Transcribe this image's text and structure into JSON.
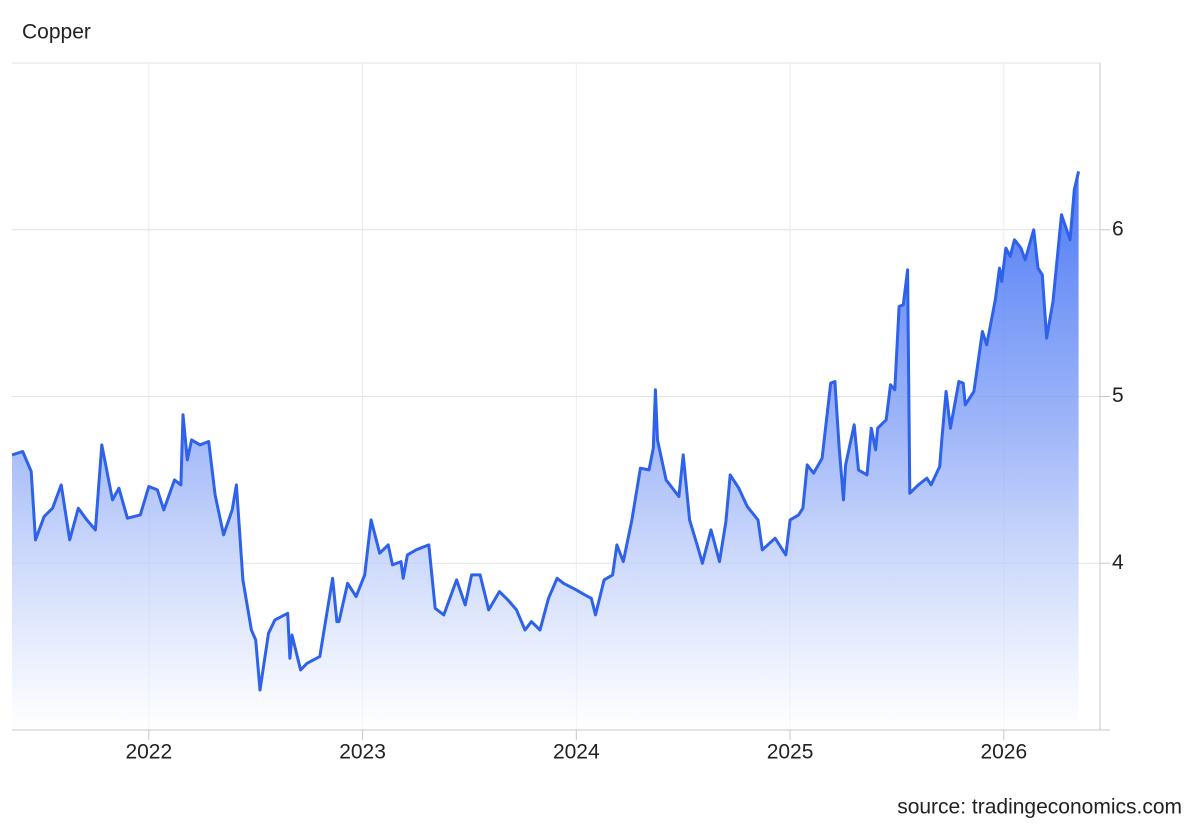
{
  "chart_data": {
    "type": "area",
    "title": "Copper",
    "source": "source: tradingeconomics.com",
    "color": "#2f62ea",
    "grid": true,
    "xlim": [
      2021.36,
      2026.45
    ],
    "xticks": [
      2022,
      2023,
      2024,
      2025,
      2026
    ],
    "ylim": [
      3,
      7
    ],
    "yticks": [
      4,
      5,
      6
    ],
    "x": [
      2021.36,
      2021.41,
      2021.45,
      2021.47,
      2021.51,
      2021.55,
      2021.59,
      2021.63,
      2021.67,
      2021.71,
      2021.75,
      2021.78,
      2021.83,
      2021.86,
      2021.9,
      2021.96,
      2022.0,
      2022.04,
      2022.07,
      2022.12,
      2022.15,
      2022.16,
      2022.18,
      2022.2,
      2022.24,
      2022.28,
      2022.31,
      2022.35,
      2022.39,
      2022.41,
      2022.44,
      2022.48,
      2022.5,
      2022.52,
      2022.56,
      2022.59,
      2022.65,
      2022.66,
      2022.67,
      2022.71,
      2022.74,
      2022.8,
      2022.82,
      2022.86,
      2022.88,
      2022.89,
      2022.93,
      2022.97,
      2023.01,
      2023.04,
      2023.08,
      2023.12,
      2023.14,
      2023.18,
      2023.19,
      2023.21,
      2023.25,
      2023.27,
      2023.31,
      2023.34,
      2023.38,
      2023.44,
      2023.48,
      2023.51,
      2023.55,
      2023.59,
      2023.64,
      2023.68,
      2023.72,
      2023.76,
      2023.79,
      2023.83,
      2023.87,
      2023.91,
      2023.94,
      2024.0,
      2024.04,
      2024.07,
      2024.09,
      2024.13,
      2024.17,
      2024.19,
      2024.22,
      2024.26,
      2024.3,
      2024.34,
      2024.36,
      2024.37,
      2024.38,
      2024.42,
      2024.48,
      2024.5,
      2024.53,
      2024.57,
      2024.59,
      2024.63,
      2024.67,
      2024.7,
      2024.72,
      2024.76,
      2024.8,
      2024.85,
      2024.87,
      2024.93,
      2024.96,
      2024.98,
      2025.0,
      2025.04,
      2025.06,
      2025.08,
      2025.11,
      2025.15,
      2025.19,
      2025.21,
      2025.23,
      2025.25,
      2025.26,
      2025.3,
      2025.32,
      2025.36,
      2025.38,
      2025.4,
      2025.41,
      2025.45,
      2025.47,
      2025.49,
      2025.51,
      2025.53,
      2025.55,
      2025.56,
      2025.6,
      2025.64,
      2025.66,
      2025.7,
      2025.71,
      2025.73,
      2025.75,
      2025.79,
      2025.81,
      2025.82,
      2025.86,
      2025.9,
      2025.92,
      2025.96,
      2025.98,
      2025.99,
      2026.01,
      2026.03,
      2026.05,
      2026.08,
      2026.1,
      2026.14,
      2026.16,
      2026.18,
      2026.2,
      2026.23,
      2026.27,
      2026.31,
      2026.33,
      2026.35
    ],
    "values": [
      4.65,
      4.67,
      4.55,
      4.14,
      4.28,
      4.33,
      4.47,
      4.14,
      4.33,
      4.26,
      4.2,
      4.71,
      4.38,
      4.45,
      4.27,
      4.29,
      4.46,
      4.44,
      4.32,
      4.5,
      4.47,
      4.89,
      4.62,
      4.74,
      4.71,
      4.73,
      4.41,
      4.17,
      4.32,
      4.47,
      3.9,
      3.6,
      3.54,
      3.24,
      3.58,
      3.66,
      3.7,
      3.43,
      3.57,
      3.36,
      3.4,
      3.44,
      3.6,
      3.91,
      3.65,
      3.65,
      3.88,
      3.8,
      3.93,
      4.26,
      4.06,
      4.11,
      3.99,
      4.01,
      3.91,
      4.05,
      4.08,
      4.09,
      4.11,
      3.73,
      3.69,
      3.9,
      3.75,
      3.93,
      3.93,
      3.72,
      3.83,
      3.78,
      3.72,
      3.6,
      3.65,
      3.6,
      3.79,
      3.91,
      3.88,
      3.84,
      3.81,
      3.79,
      3.69,
      3.9,
      3.93,
      4.11,
      4.01,
      4.26,
      4.57,
      4.56,
      4.69,
      5.04,
      4.74,
      4.5,
      4.4,
      4.65,
      4.26,
      4.09,
      4.0,
      4.2,
      4.01,
      4.25,
      4.53,
      4.45,
      4.34,
      4.26,
      4.08,
      4.15,
      4.09,
      4.05,
      4.26,
      4.29,
      4.33,
      4.59,
      4.54,
      4.63,
      5.08,
      5.09,
      4.69,
      4.38,
      4.59,
      4.83,
      4.56,
      4.53,
      4.81,
      4.68,
      4.81,
      4.86,
      5.07,
      5.04,
      5.54,
      5.55,
      5.76,
      4.42,
      4.47,
      4.51,
      4.47,
      4.58,
      4.74,
      5.03,
      4.81,
      5.09,
      5.08,
      4.95,
      5.03,
      5.39,
      5.31,
      5.58,
      5.77,
      5.69,
      5.89,
      5.84,
      5.94,
      5.89,
      5.82,
      6.0,
      5.77,
      5.73,
      5.35,
      5.57,
      6.09,
      5.94,
      6.24,
      6.35
    ]
  }
}
